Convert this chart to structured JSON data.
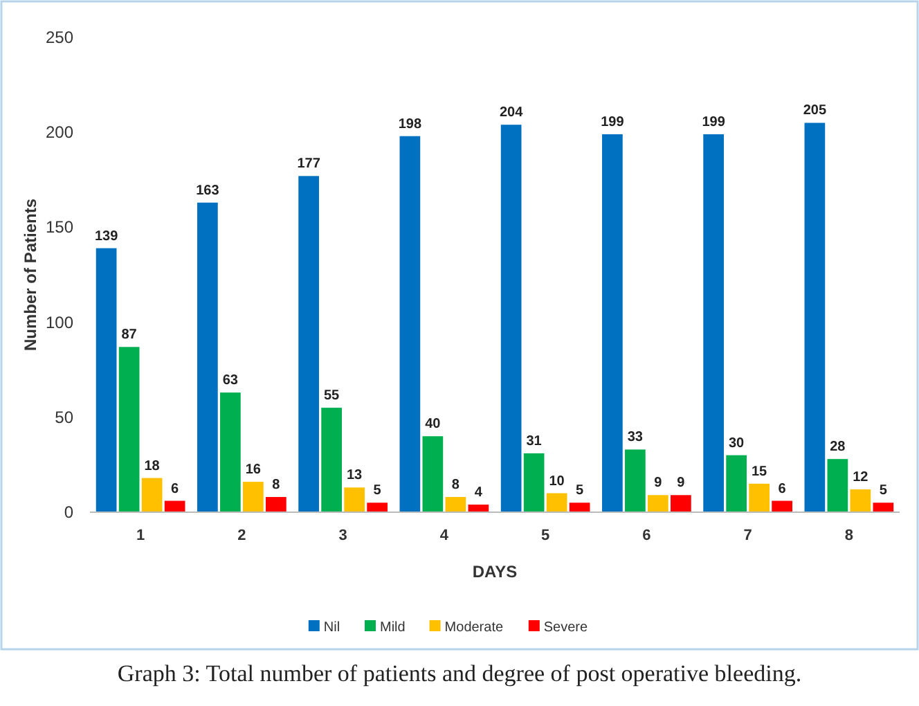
{
  "chart_data": {
    "type": "bar",
    "xlabel": "DAYS",
    "ylabel": "Number of Patients",
    "categories": [
      "1",
      "2",
      "3",
      "4",
      "5",
      "6",
      "7",
      "8"
    ],
    "series": [
      {
        "name": "Nil",
        "color": "#0070c0",
        "values": [
          139,
          163,
          177,
          198,
          204,
          199,
          199,
          205
        ]
      },
      {
        "name": "Mild",
        "color": "#00b050",
        "values": [
          87,
          63,
          55,
          40,
          31,
          33,
          30,
          28
        ]
      },
      {
        "name": "Moderate",
        "color": "#ffc000",
        "values": [
          18,
          16,
          13,
          8,
          10,
          9,
          15,
          12
        ]
      },
      {
        "name": "Severe",
        "color": "#ff0000",
        "values": [
          6,
          8,
          5,
          4,
          5,
          9,
          6,
          5
        ]
      }
    ],
    "ylim": [
      0,
      250
    ],
    "yticks": [
      0,
      50,
      100,
      150,
      200,
      250
    ],
    "grid": false,
    "legend": "bottom",
    "data_labels": true,
    "annotations": [
      "Graph 3: Total number of patients and degree of post operative bleeding."
    ]
  }
}
